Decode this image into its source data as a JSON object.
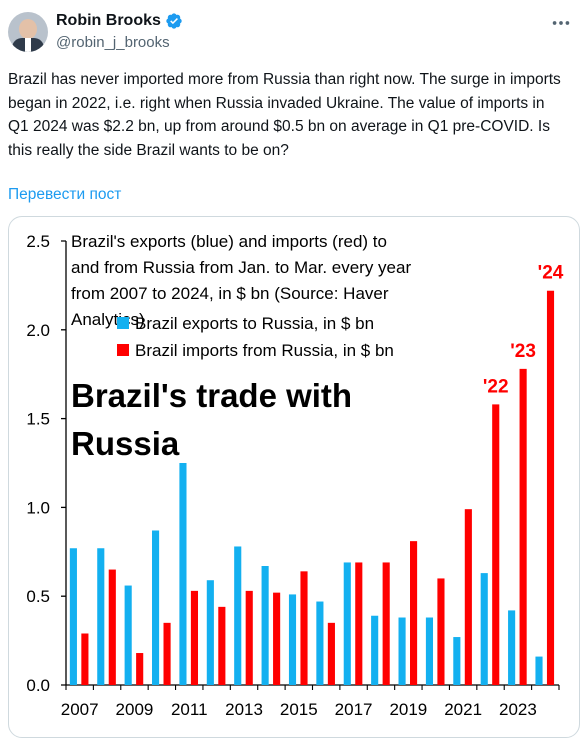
{
  "tweet": {
    "author_name": "Robin Brooks",
    "handle": "@robin_j_brooks",
    "text": "Brazil has never imported more from Russia than right now. The surge in imports began in 2022, i.e. right when Russia invaded Ukraine. The value of imports in Q1 2024 was $2.2 bn, up from around $0.5 bn on average in Q1 pre-COVID. Is this really the side Brazil wants to be on?",
    "translate_label": "Перевести пост",
    "icons": {
      "verified": "verified-badge-icon",
      "more": "more-options-icon",
      "avatar": "avatar"
    }
  },
  "chart_data": {
    "type": "bar",
    "title": "Brazil's exports (blue) and imports (red) to and from Russia from Jan. to Mar. every year from 2007 to 2024, in $ bn (Source: Haver Analytics)",
    "big_label": [
      "Brazil's trade with",
      "Russia"
    ],
    "categories": [
      2007,
      2008,
      2009,
      2010,
      2011,
      2012,
      2013,
      2014,
      2015,
      2016,
      2017,
      2018,
      2019,
      2020,
      2021,
      2022,
      2023,
      2024
    ],
    "tick_labels": [
      "2007",
      "2009",
      "2011",
      "2013",
      "2015",
      "2017",
      "2019",
      "2021",
      "2023"
    ],
    "series": [
      {
        "name": "Brazil exports to Russia, in $ bn",
        "color": "#13b0f0",
        "values": [
          0.77,
          0.77,
          0.56,
          0.87,
          1.25,
          0.59,
          0.78,
          0.67,
          0.51,
          0.47,
          0.69,
          0.39,
          0.38,
          0.38,
          0.27,
          0.63,
          0.42,
          0.16
        ]
      },
      {
        "name": "Brazil imports from Russia, in $ bn",
        "color": "#ff0000",
        "values": [
          0.29,
          0.65,
          0.18,
          0.35,
          0.53,
          0.44,
          0.53,
          0.52,
          0.64,
          0.35,
          0.69,
          0.69,
          0.81,
          0.6,
          0.99,
          1.58,
          1.78,
          2.22
        ]
      }
    ],
    "annotations": [
      {
        "text": "'22",
        "year": 2022
      },
      {
        "text": "'23",
        "year": 2023
      },
      {
        "text": "'24",
        "year": 2024
      }
    ],
    "ylim": [
      0,
      2.5
    ],
    "yticks": [
      "0.0",
      "0.5",
      "1.0",
      "1.5",
      "2.0",
      "2.5"
    ],
    "grid": false,
    "legend_position": "top-left"
  }
}
